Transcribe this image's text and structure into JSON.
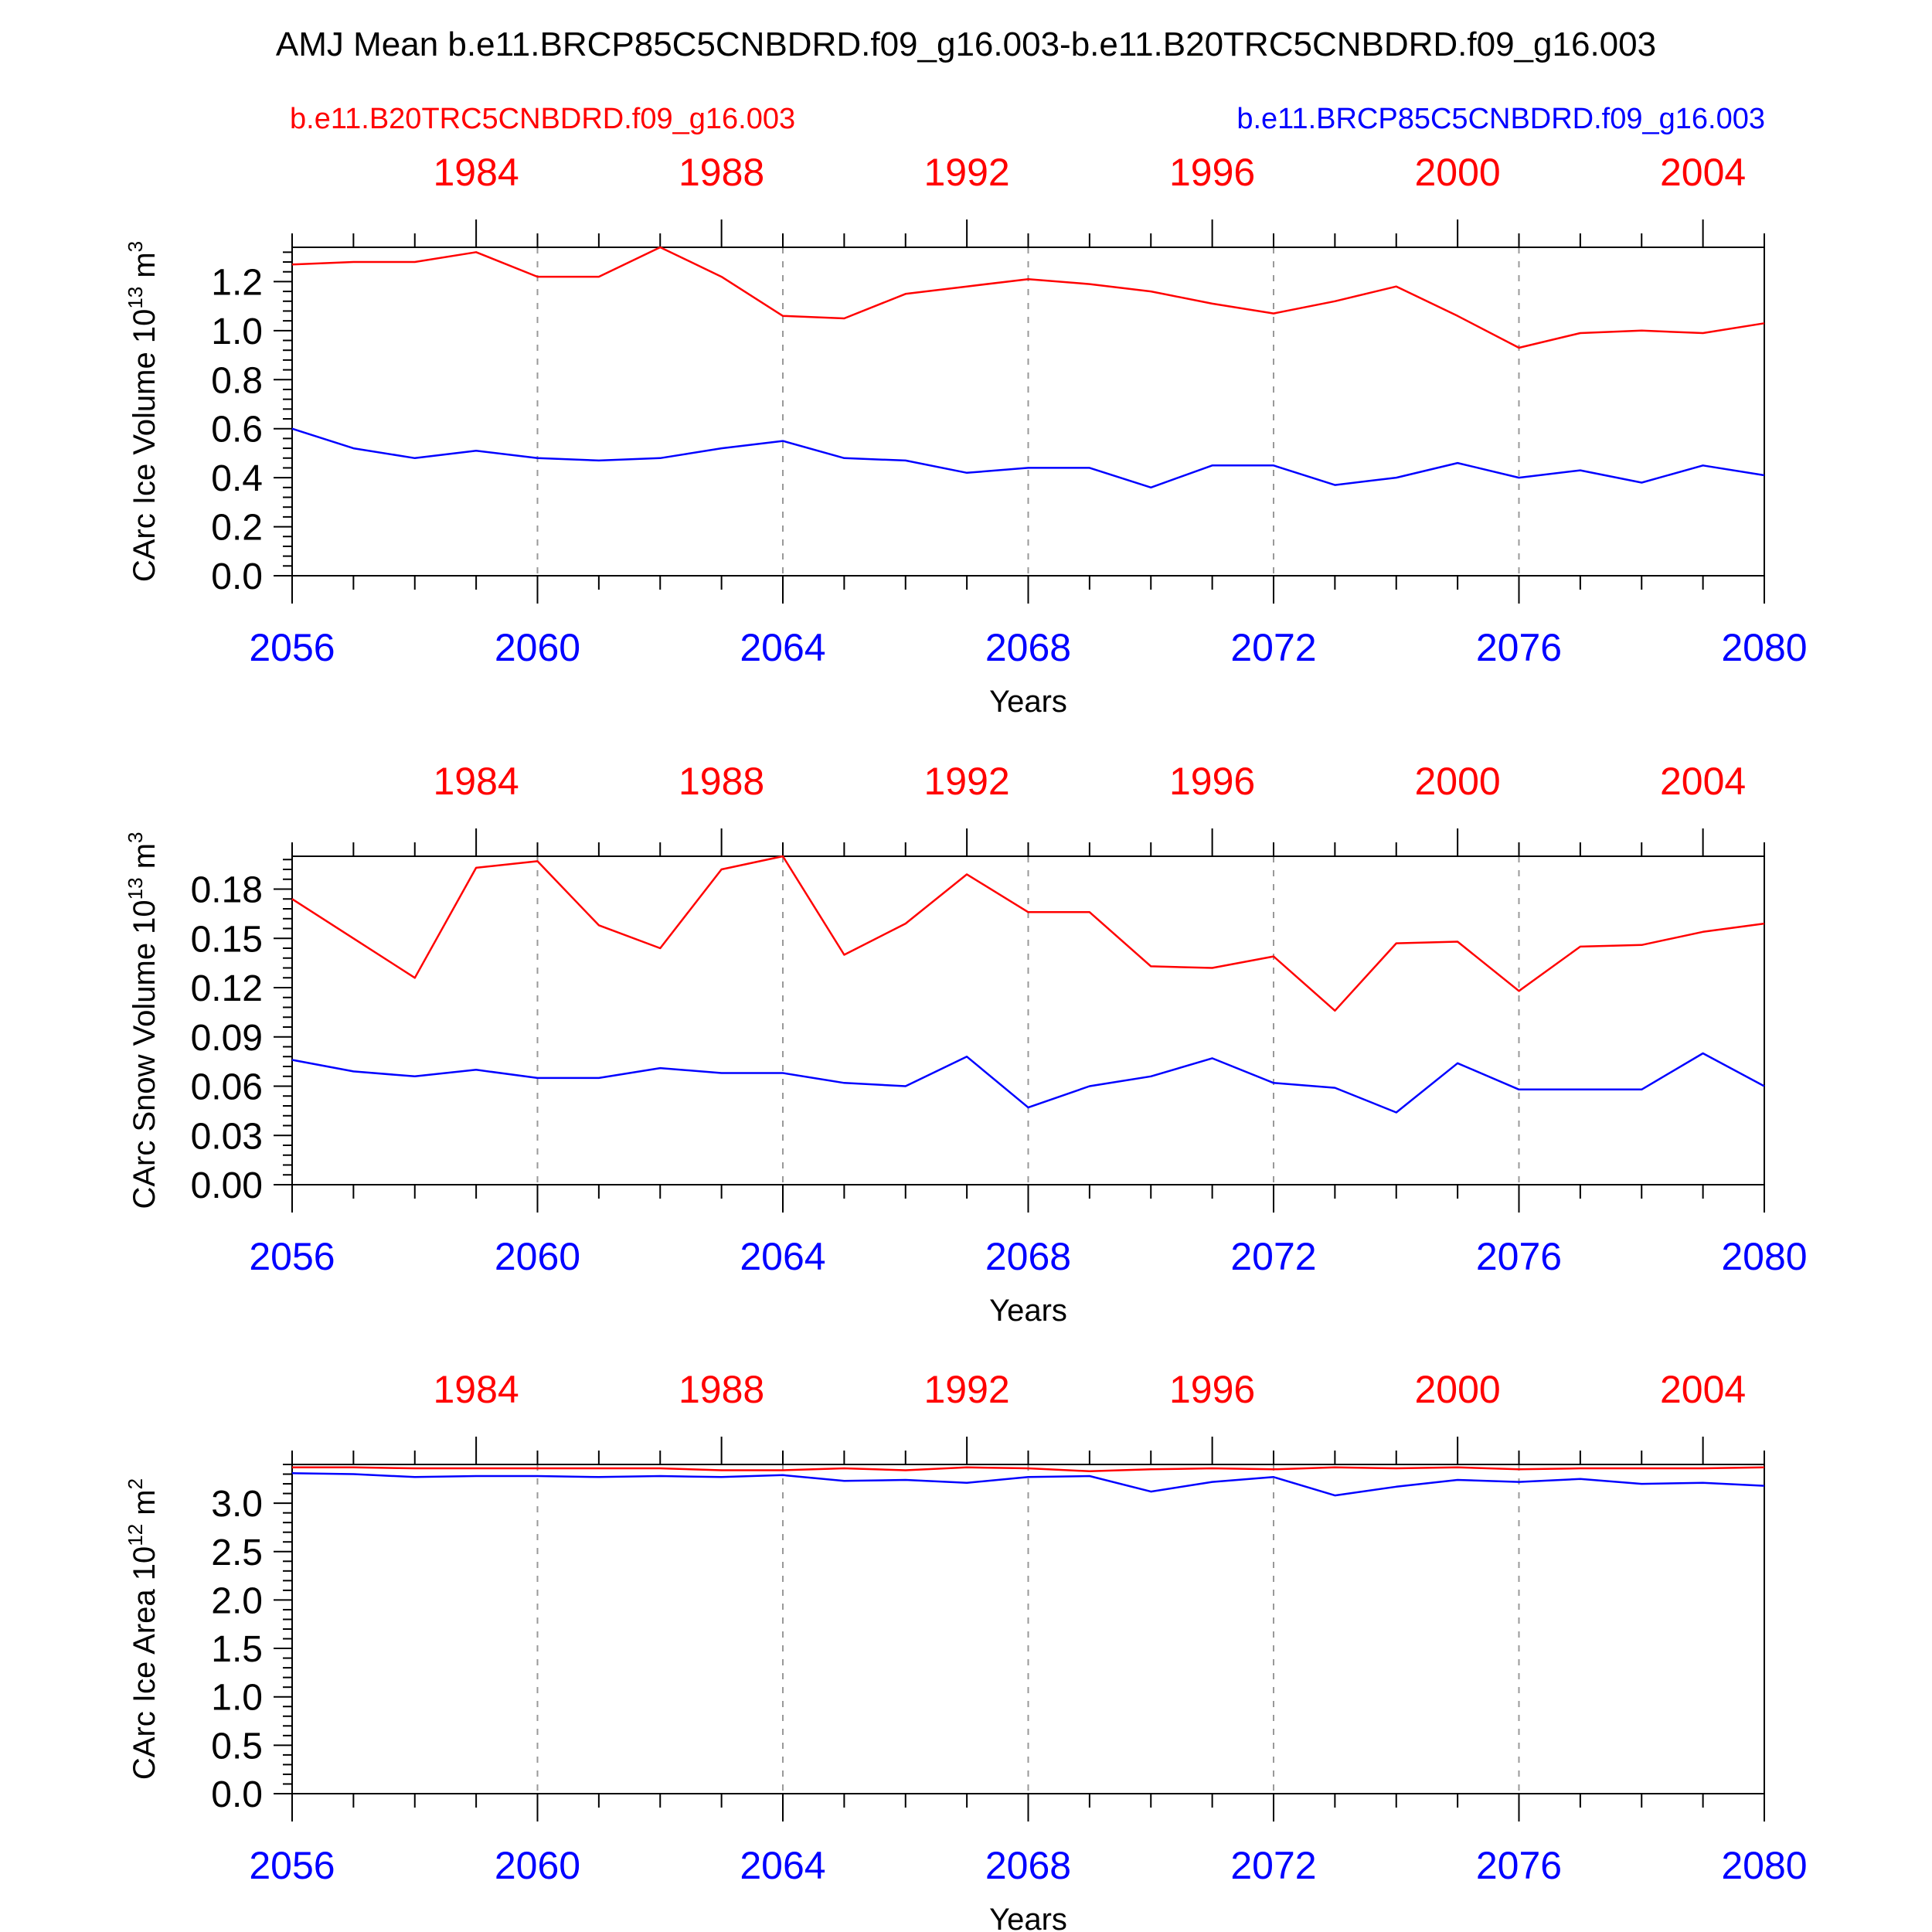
{
  "title": "AMJ Mean b.e11.BRCP85C5CNBDRD.f09_g16.003-b.e11.B20TRC5CNBDRD.f09_g16.003",
  "legend": {
    "left": "b.e11.B20TRC5CNBDRD.f09_g16.003",
    "right": "b.e11.BRCP85C5CNBDRD.f09_g16.003"
  },
  "colors": {
    "red": "#ff0000",
    "blue": "#0000ff",
    "axis": "#000000",
    "grid": "#999999"
  },
  "chart_data": [
    {
      "type": "line",
      "ylabel": "CArc Ice Volume 10",
      "ylabel_exp": "13",
      "ylabel_unit": " m",
      "ylabel_unit_exp": "3",
      "xlabel": "Years",
      "xlim": [
        2056,
        2080
      ],
      "ylim": [
        0,
        1.34
      ],
      "yticks": [
        "0.0",
        "0.2",
        "0.4",
        "0.6",
        "0.8",
        "1.0",
        "1.2"
      ],
      "xticks": [
        "2056",
        "2060",
        "2064",
        "2068",
        "2072",
        "2076",
        "2080"
      ],
      "top_ticks": [
        "1984",
        "1988",
        "1992",
        "1996",
        "2000",
        "2004"
      ],
      "x": [
        2056,
        2057,
        2058,
        2059,
        2060,
        2061,
        2062,
        2063,
        2064,
        2065,
        2066,
        2067,
        2068,
        2069,
        2070,
        2071,
        2072,
        2073,
        2074,
        2075,
        2076,
        2077,
        2078,
        2079,
        2080
      ],
      "series": [
        {
          "color": "#ff0000",
          "values": [
            1.27,
            1.28,
            1.28,
            1.32,
            1.22,
            1.22,
            1.34,
            1.22,
            1.06,
            1.05,
            1.15,
            1.18,
            1.21,
            1.19,
            1.16,
            1.11,
            1.07,
            1.12,
            1.18,
            1.06,
            0.93,
            0.99,
            1.0,
            0.99,
            1.03
          ]
        },
        {
          "color": "#0000ff",
          "values": [
            0.6,
            0.52,
            0.48,
            0.51,
            0.48,
            0.47,
            0.48,
            0.52,
            0.55,
            0.48,
            0.47,
            0.42,
            0.44,
            0.44,
            0.36,
            0.45,
            0.45,
            0.37,
            0.4,
            0.46,
            0.4,
            0.43,
            0.38,
            0.45,
            0.41
          ]
        }
      ]
    },
    {
      "type": "line",
      "ylabel": "CArc Snow Volume 10",
      "ylabel_exp": "13",
      "ylabel_unit": " m",
      "ylabel_unit_exp": "3",
      "xlabel": "Years",
      "xlim": [
        2056,
        2080
      ],
      "ylim": [
        0,
        0.2
      ],
      "yticks": [
        "0.00",
        "0.03",
        "0.06",
        "0.09",
        "0.12",
        "0.15",
        "0.18"
      ],
      "xticks": [
        "2056",
        "2060",
        "2064",
        "2068",
        "2072",
        "2076",
        "2080"
      ],
      "top_ticks": [
        "1984",
        "1988",
        "1992",
        "1996",
        "2000",
        "2004"
      ],
      "x": [
        2056,
        2057,
        2058,
        2059,
        2060,
        2061,
        2062,
        2063,
        2064,
        2065,
        2066,
        2067,
        2068,
        2069,
        2070,
        2071,
        2072,
        2073,
        2074,
        2075,
        2076,
        2077,
        2078,
        2079,
        2080
      ],
      "series": [
        {
          "color": "#ff0000",
          "values": [
            0.174,
            0.15,
            0.126,
            0.193,
            0.197,
            0.158,
            0.144,
            0.192,
            0.2,
            0.14,
            0.159,
            0.189,
            0.166,
            0.166,
            0.133,
            0.132,
            0.139,
            0.106,
            0.147,
            0.148,
            0.118,
            0.145,
            0.146,
            0.154,
            0.159
          ]
        },
        {
          "color": "#0000ff",
          "values": [
            0.076,
            0.069,
            0.066,
            0.07,
            0.065,
            0.065,
            0.071,
            0.068,
            0.068,
            0.062,
            0.06,
            0.078,
            0.047,
            0.06,
            0.066,
            0.077,
            0.062,
            0.059,
            0.044,
            0.074,
            0.058,
            0.058,
            0.058,
            0.08,
            0.06
          ]
        }
      ]
    },
    {
      "type": "line",
      "ylabel": "CArc Ice Area 10",
      "ylabel_exp": "12",
      "ylabel_unit": " m",
      "ylabel_unit_exp": "2",
      "xlabel": "Years",
      "xlim": [
        2056,
        2080
      ],
      "ylim": [
        0,
        3.4
      ],
      "yticks": [
        "0.0",
        "0.5",
        "1.0",
        "1.5",
        "2.0",
        "2.5",
        "3.0"
      ],
      "xticks": [
        "2056",
        "2060",
        "2064",
        "2068",
        "2072",
        "2076",
        "2080"
      ],
      "top_ticks": [
        "1984",
        "1988",
        "1992",
        "1996",
        "2000",
        "2004"
      ],
      "x": [
        2056,
        2057,
        2058,
        2059,
        2060,
        2061,
        2062,
        2063,
        2064,
        2065,
        2066,
        2067,
        2068,
        2069,
        2070,
        2071,
        2072,
        2073,
        2074,
        2075,
        2076,
        2077,
        2078,
        2079,
        2080
      ],
      "series": [
        {
          "color": "#ff0000",
          "values": [
            3.37,
            3.37,
            3.36,
            3.36,
            3.36,
            3.36,
            3.36,
            3.34,
            3.34,
            3.36,
            3.34,
            3.37,
            3.36,
            3.33,
            3.35,
            3.36,
            3.35,
            3.37,
            3.36,
            3.37,
            3.35,
            3.36,
            3.36,
            3.36,
            3.37
          ]
        },
        {
          "color": "#0000ff",
          "values": [
            3.31,
            3.3,
            3.27,
            3.28,
            3.28,
            3.27,
            3.28,
            3.27,
            3.29,
            3.23,
            3.24,
            3.21,
            3.27,
            3.28,
            3.12,
            3.22,
            3.27,
            3.08,
            3.17,
            3.24,
            3.22,
            3.25,
            3.2,
            3.21,
            3.18
          ]
        }
      ]
    }
  ]
}
